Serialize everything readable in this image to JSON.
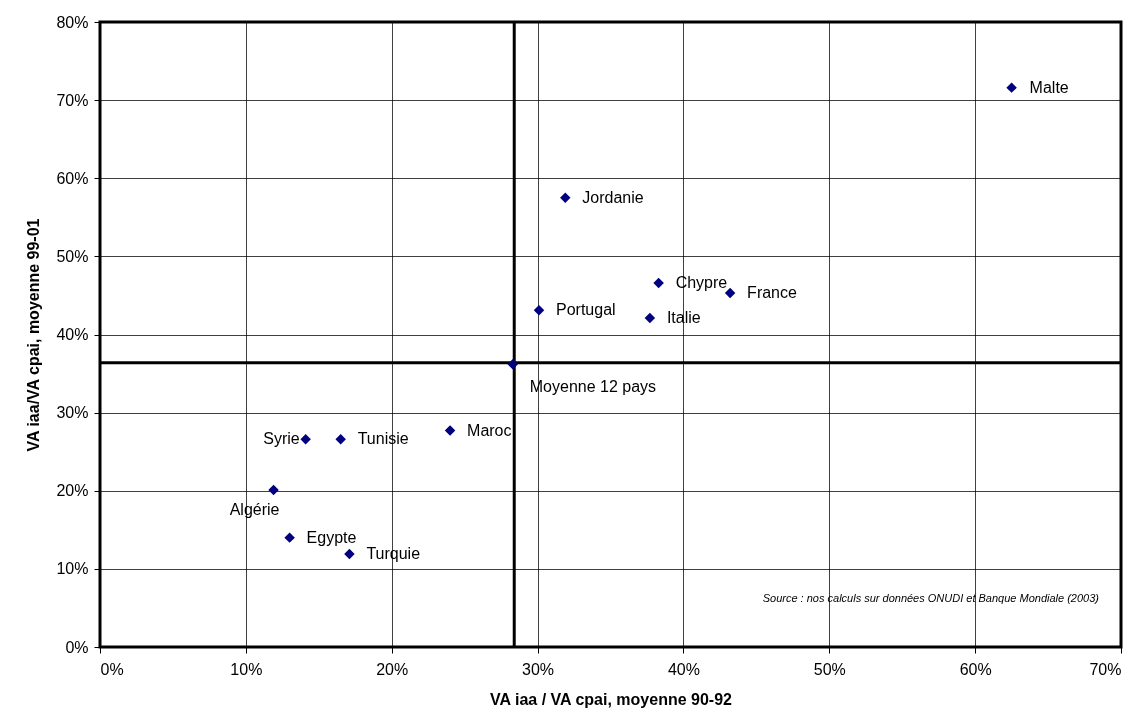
{
  "chart_data": {
    "type": "scatter",
    "xlabel": "VA iaa / VA cpai, moyenne 90-92",
    "ylabel": "VA iaa/VA cpai, moyenne 99-01",
    "x": [
      62.5,
      31.9,
      38.3,
      43.2,
      30.1,
      37.7,
      28.3,
      24.0,
      16.5,
      14.1,
      11.9,
      13.0,
      17.1
    ],
    "series": [
      {
        "color": "#000080",
        "values": [
          71.6,
          57.5,
          46.6,
          45.3,
          43.1,
          42.1,
          36.2,
          27.7,
          26.6,
          26.6,
          20.1,
          14.0,
          11.9
        ]
      }
    ],
    "marker": "diamond",
    "grid": true,
    "xlim": [
      0,
      70
    ],
    "xticks": [
      {
        "value": 0,
        "label": "0%"
      },
      {
        "value": 10,
        "label": "10%"
      },
      {
        "value": 20,
        "label": "20%"
      },
      {
        "value": 30,
        "label": "30%"
      },
      {
        "value": 40,
        "label": "40%"
      },
      {
        "value": 50,
        "label": "50%"
      },
      {
        "value": 60,
        "label": "60%"
      },
      {
        "value": 70,
        "label": "70%"
      }
    ],
    "ylim": [
      0,
      80
    ],
    "yticks": [
      {
        "value": 0,
        "label": "0%"
      },
      {
        "value": 10,
        "label": "10%"
      },
      {
        "value": 20,
        "label": "20%"
      },
      {
        "value": 30,
        "label": "30%"
      },
      {
        "value": 40,
        "label": "40%"
      },
      {
        "value": 50,
        "label": "50%"
      },
      {
        "value": 60,
        "label": "60%"
      },
      {
        "value": 70,
        "label": "70%"
      },
      {
        "value": 80,
        "label": "80%"
      }
    ],
    "ref_lines": [
      {
        "axis": "x",
        "value": 28.4,
        "color": "#000000"
      },
      {
        "axis": "y",
        "value": 36.4,
        "color": "#000000"
      }
    ],
    "annotations": [
      {
        "text": "Malte",
        "x": 62.5,
        "y": 71.6
      },
      {
        "text": "Jordanie",
        "x": 31.9,
        "y": 57.5
      },
      {
        "text": "Chypre",
        "x": 38.3,
        "y": 46.6
      },
      {
        "text": "France",
        "x": 43.2,
        "y": 45.3
      },
      {
        "text": "Portugal",
        "x": 30.1,
        "y": 43.1
      },
      {
        "text": "Italie",
        "x": 37.7,
        "y": 42.1
      },
      {
        "text": "Moyenne 12 pays",
        "x": 28.3,
        "y": 36.2
      },
      {
        "text": "Maroc",
        "x": 24.0,
        "y": 27.7
      },
      {
        "text": "Tunisie",
        "x": 16.5,
        "y": 26.6
      },
      {
        "text": "Syrie",
        "x": 14.1,
        "y": 26.6
      },
      {
        "text": "Algérie",
        "x": 11.9,
        "y": 20.1
      },
      {
        "text": "Egypte",
        "x": 13.0,
        "y": 14.0
      },
      {
        "text": "Turquie",
        "x": 17.1,
        "y": 11.9
      },
      "Source : nos calculs sur données ONUDI et Banque Mondiale (2003)"
    ]
  }
}
